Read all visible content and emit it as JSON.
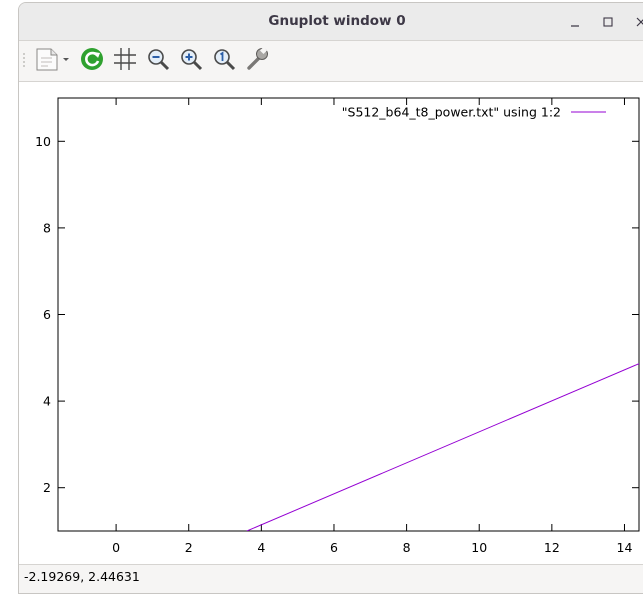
{
  "window": {
    "title": "Gnuplot window 0",
    "controls": {
      "minimize": "minimize-icon",
      "maximize": "maximize-icon",
      "close": "close-icon"
    }
  },
  "toolbar": {
    "buttons": [
      {
        "name": "copy-to-clipboard",
        "icon": "clipboard-icon"
      },
      {
        "name": "replot",
        "icon": "replot-icon",
        "color": "#2fa12f"
      },
      {
        "name": "toggle-grid",
        "icon": "grid-icon"
      },
      {
        "name": "zoom-previous",
        "icon": "zoom-out-icon"
      },
      {
        "name": "zoom-next",
        "icon": "zoom-in-icon"
      },
      {
        "name": "autoscale",
        "icon": "zoom-fit-icon"
      },
      {
        "name": "configure",
        "icon": "wrench-icon"
      }
    ]
  },
  "chart_data": {
    "type": "line",
    "title": "",
    "xlabel": "",
    "ylabel": "",
    "xlim": [
      -1.6,
      14.4
    ],
    "ylim": [
      1,
      11
    ],
    "xticks": [
      0,
      2,
      4,
      6,
      8,
      10,
      12,
      14
    ],
    "yticks": [
      2,
      4,
      6,
      8,
      10
    ],
    "grid": false,
    "legend": "top-right",
    "series": [
      {
        "name": "\"S512_b64_t8_power.txt\" using 1:2",
        "color": "#9400d3",
        "x": [
          3.6,
          14.5
        ],
        "y": [
          1.0,
          4.9
        ]
      }
    ]
  },
  "status": {
    "coordinates": "-2.19269,  2.44631"
  }
}
